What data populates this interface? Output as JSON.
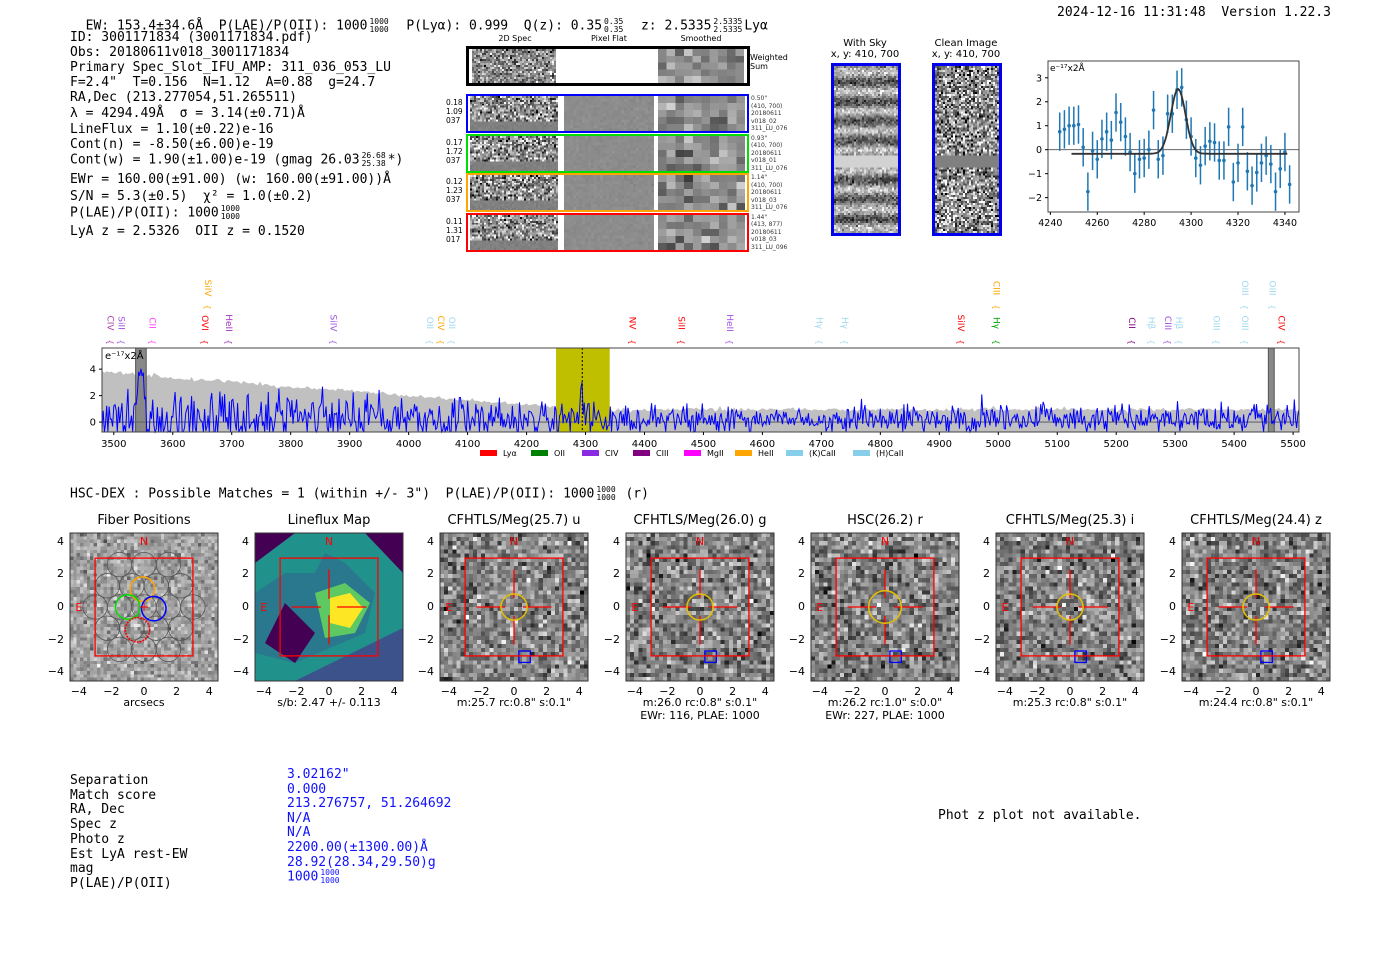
{
  "header": {
    "ew": "EW: 153.4±34.6Å",
    "plae": "P(LAE)/P(OII): 1000",
    "plae_hi": "1000",
    "plae_lo": "1000",
    "plya": "P(Lyα): 0.999",
    "qz": "Q(z): 0.35",
    "qz_hi": "0.35",
    "qz_lo": "0.35",
    "z": "z: 2.5335",
    "z_hi": "2.5335",
    "z_lo": "2.5335",
    "z_line": "Lyα",
    "timestamp": "2024-12-16 11:31:48",
    "version": "Version 1.22.3"
  },
  "info": {
    "id": "ID: 3001171834 (3001171834.pdf)",
    "obs": "Obs: 20180611v018_3001171834",
    "primary": "Primary Spec_Slot_IFU_AMP: 311_036_053_LU",
    "fiber_stats": "F=2.4\"  T=0.156  N=1.12  A=0.88  g=24.7",
    "radec": "RA,Dec (213.277054,51.265511)",
    "lambda": "λ = 4294.49Å  σ = 3.14(±0.71)Å",
    "lineflux": "LineFlux = 1.10(±0.22)e-16",
    "cont_n": "Cont(n) = -8.50(±6.00)e-19",
    "cont_w": "Cont(w) = 1.90(±1.00)e-19 (gmag 26.03",
    "gmag_hi": "26.68",
    "gmag_lo": "25.38",
    "cont_w_end": "*)",
    "ewr": "EWr = 160.00(±91.00) (w: 160.00(±91.00))Å",
    "sn": "S/N = 5.3(±0.5)  χ² = 1.0(±0.2)",
    "plae": "P(LAE)/P(OII): 1000",
    "plae_hi": "1000",
    "plae_lo": "1000",
    "z": "LyA z = 2.5326  OII z = 0.1520"
  },
  "spec2d": {
    "headers": [
      "2D Spec",
      "Pixel Flat",
      "Smoothed"
    ],
    "sum_label": [
      "Weighted",
      "Sum"
    ],
    "rows": [
      {
        "stats": [
          "0.18",
          "1.09",
          "037"
        ],
        "info": [
          "0.50\"",
          "(410, 700)",
          "20180611",
          "v018_02",
          "311_LU_076"
        ],
        "color": "#0000ff"
      },
      {
        "stats": [
          "0.17",
          "1.72",
          "037"
        ],
        "info": [
          "0.93\"",
          "(410, 700)",
          "20180611",
          "v018_01",
          "311_LU_076"
        ],
        "color": "#00dd00"
      },
      {
        "stats": [
          "0.12",
          "1.23",
          "037"
        ],
        "info": [
          "1.14\"",
          "(410, 700)",
          "20180611",
          "v018_03",
          "311_LU_076"
        ],
        "color": "#ffa500"
      },
      {
        "stats": [
          "0.11",
          "1.31",
          "017"
        ],
        "info": [
          "1.44\"",
          "(413, 877)",
          "20180611",
          "v018_03",
          "311_LU_096"
        ],
        "color": "#ff0000"
      }
    ]
  },
  "fiber_images": [
    {
      "title": "With Sky",
      "coords": "x, y: 410, 700"
    },
    {
      "title": "Clean Image",
      "coords": "x, y: 410, 700"
    }
  ],
  "chart_data": [
    {
      "type": "scatter",
      "title": "",
      "unit_label": "e⁻¹⁷x2Å",
      "xlim": [
        4239,
        4346
      ],
      "ylim": [
        -2.6,
        3.7
      ],
      "xticks": [
        4240,
        4260,
        4280,
        4300,
        4320,
        4340
      ],
      "yticks": [
        -2,
        -1,
        0,
        1,
        2,
        3
      ],
      "x": [
        4244,
        4246,
        4248,
        4250,
        4252,
        4254,
        4256,
        4258,
        4260,
        4262,
        4264,
        4266,
        4268,
        4270,
        4272,
        4274,
        4276,
        4278,
        4280,
        4282,
        4284,
        4286,
        4288,
        4290,
        4292,
        4294,
        4296,
        4298,
        4300,
        4302,
        4304,
        4306,
        4308,
        4310,
        4312,
        4314,
        4316,
        4318,
        4320,
        4322,
        4324,
        4326,
        4328,
        4330,
        4332,
        4334,
        4336,
        4338,
        4340,
        4342
      ],
      "y": [
        0.75,
        0.85,
        1.0,
        1.0,
        1.05,
        0.1,
        -1.75,
        -0.05,
        -0.4,
        0.45,
        0.75,
        0.4,
        1.55,
        1.15,
        0.55,
        -0.1,
        -1.0,
        -0.4,
        -0.35,
        0.0,
        1.65,
        -0.4,
        -0.25,
        1.5,
        1.5,
        2.5,
        2.6,
        1.25,
        0.55,
        -0.35,
        -0.65,
        0.15,
        0.35,
        0.3,
        -0.45,
        -0.45,
        0.95,
        -1.35,
        -0.55,
        0.95,
        -0.9,
        -1.5,
        -0.95,
        -0.55,
        -0.25,
        -0.6,
        -1.75,
        -0.8,
        -0.1,
        -1.45
      ],
      "yerr": 0.8,
      "fit": {
        "center": 4294.49,
        "sigma": 3.14,
        "amplitude": 2.7,
        "baseline": -0.17,
        "range": [
          4249,
          4341
        ]
      }
    },
    {
      "type": "line",
      "unit_label": "e⁻¹⁷x2Å",
      "xlim": [
        3480,
        5510
      ],
      "ylim": [
        -0.75,
        5.6
      ],
      "xticks": [
        3500,
        3600,
        3700,
        3800,
        3900,
        4000,
        4100,
        4200,
        4300,
        4400,
        4500,
        4600,
        4700,
        4800,
        4900,
        5000,
        5100,
        5200,
        5300,
        5400,
        5500
      ],
      "yticks": [
        0,
        2,
        4
      ],
      "highlight_band": [
        4250,
        4341
      ],
      "line_marker": 4294.49,
      "masked_regions": [
        [
          3537,
          3555
        ],
        [
          5458,
          5468
        ]
      ],
      "legend": [
        {
          "label": "Lyα",
          "color": "#ff0000"
        },
        {
          "label": "OII",
          "color": "#008000"
        },
        {
          "label": "CIV",
          "color": "#8a2be2"
        },
        {
          "label": "CIII",
          "color": "#800080"
        },
        {
          "label": "MgII",
          "color": "#ff00ff"
        },
        {
          "label": "HeII",
          "color": "#ffa500"
        },
        {
          "label": "(K)CaII",
          "color": "#87ceeb"
        },
        {
          "label": "(H)CaII",
          "color": "#87ceeb"
        }
      ],
      "line_labels": [
        {
          "label": "CIV",
          "wave": 3494,
          "color": "#b03fb0",
          "row": 1
        },
        {
          "label": "SiII",
          "wave": 3512,
          "color": "#a050e0",
          "row": 1
        },
        {
          "label": "CII",
          "wave": 3566,
          "color": "#ff40ff",
          "row": 1
        },
        {
          "label": "SiIV",
          "wave": 3660,
          "color": "#ffa500",
          "row": 0
        },
        {
          "label": "OVI",
          "wave": 3655,
          "color": "#ff0000",
          "row": 1
        },
        {
          "label": "HeII",
          "wave": 3695,
          "color": "#a030c0",
          "row": 1
        },
        {
          "label": "SiIV",
          "wave": 3873,
          "color": "#a050e0",
          "row": 1
        },
        {
          "label": "OII",
          "wave": 4036,
          "color": "#9fd8ef",
          "row": 1
        },
        {
          "label": "CIV",
          "wave": 4055,
          "color": "#ffa500",
          "row": 1
        },
        {
          "label": "OII",
          "wave": 4068,
          "color": "#9fd8ef",
          "row": 1
        },
        {
          "label": "NV",
          "wave": 4380,
          "color": "#ff0000",
          "row": 1
        },
        {
          "label": "SiII",
          "wave": 4463,
          "color": "#ff0000",
          "row": 1
        },
        {
          "label": "HeII",
          "wave": 4545,
          "color": "#a050e0",
          "row": 1
        },
        {
          "label": "Hγ",
          "wave": 4697,
          "color": "#9fd8ef",
          "row": 1
        },
        {
          "label": "Hγ",
          "wave": 4740,
          "color": "#9fd8ef",
          "row": 1
        },
        {
          "label": "SiIV",
          "wave": 4937,
          "color": "#ff0000",
          "row": 1
        },
        {
          "label": "CIII",
          "wave": 4997,
          "color": "#ffa500",
          "row": 0
        },
        {
          "label": "Hγ",
          "wave": 4997,
          "color": "#00a000",
          "row": 1
        },
        {
          "label": "CII",
          "wave": 5227,
          "color": "#800080",
          "row": 1
        },
        {
          "label": "Hβ",
          "wave": 5260,
          "color": "#9fd8ef",
          "row": 1
        },
        {
          "label": "CIII",
          "wave": 5288,
          "color": "#a050e0",
          "row": 1
        },
        {
          "label": "Hβ",
          "wave": 5305,
          "color": "#9fd8ef",
          "row": 1
        },
        {
          "label": "OIII",
          "wave": 5370,
          "color": "#9fd8ef",
          "row": 1
        },
        {
          "label": "OIII",
          "wave": 5418,
          "color": "#9fd8ef",
          "row": 1
        },
        {
          "label": "OIII",
          "wave": 5418,
          "color": "#9fd8ef",
          "row": 0
        },
        {
          "label": "OIII",
          "wave": 5465,
          "color": "#9fd8ef",
          "row": 0
        },
        {
          "label": "CIV",
          "wave": 5480,
          "color": "#ff0000",
          "row": 1
        }
      ]
    }
  ],
  "hsc": {
    "title": "HSC-DEX : Possible Matches = 1 (within +/- 3\")  P(LAE)/P(OII): 1000",
    "plae_hi": "1000",
    "plae_lo": "1000",
    "band": "(r)"
  },
  "compass": {
    "n": "N",
    "e": "E"
  },
  "cutout_xticks": [
    "−4",
    "−2",
    "0",
    "2",
    "4"
  ],
  "cutout_yticks": [
    "4",
    "2",
    "0",
    "−2",
    "−4"
  ],
  "cutouts": [
    {
      "title": "Fiber Positions",
      "caption": [
        "arcsecs"
      ],
      "kind": "fibers"
    },
    {
      "title": "Lineflux Map",
      "caption": [
        "s/b: 2.47 +/- 0.113"
      ],
      "kind": "lineflux"
    },
    {
      "title": "CFHTLS/Meg(25.7) u",
      "caption": [
        "m:25.7 rc:0.8\"  s:0.1\""
      ],
      "kind": "image"
    },
    {
      "title": "CFHTLS/Meg(26.0) g",
      "caption": [
        "m:26.0 rc:0.8\"  s:0.1\"",
        "EWr: 116, PLAE: 1000"
      ],
      "kind": "image"
    },
    {
      "title": "HSC(26.2) r",
      "caption": [
        "m:26.2 rc:1.0\"  s:0.0\"",
        "EWr: 227, PLAE: 1000"
      ],
      "kind": "image"
    },
    {
      "title": "CFHTLS/Meg(25.3) i",
      "caption": [
        "m:25.3 rc:0.8\"  s:0.1\""
      ],
      "kind": "image"
    },
    {
      "title": "CFHTLS/Meg(24.4) z",
      "caption": [
        "m:24.4 rc:0.8\"  s:0.1\""
      ],
      "kind": "image"
    }
  ],
  "match": {
    "labels": [
      "Separation",
      "Match score",
      "RA, Dec",
      "Spec z",
      "Photo z",
      "Est LyA rest-EW",
      "mag",
      "P(LAE)/P(OII)"
    ],
    "values": [
      "3.02162\"",
      "0.000",
      "213.276757, 51.264692",
      "N/A",
      "N/A",
      "2200.00(±1300.00)Å",
      "28.92(28.34,29.50)g",
      "1000"
    ],
    "plae_hi": "1000",
    "plae_lo": "1000"
  },
  "phot_z": "Phot z plot not available."
}
